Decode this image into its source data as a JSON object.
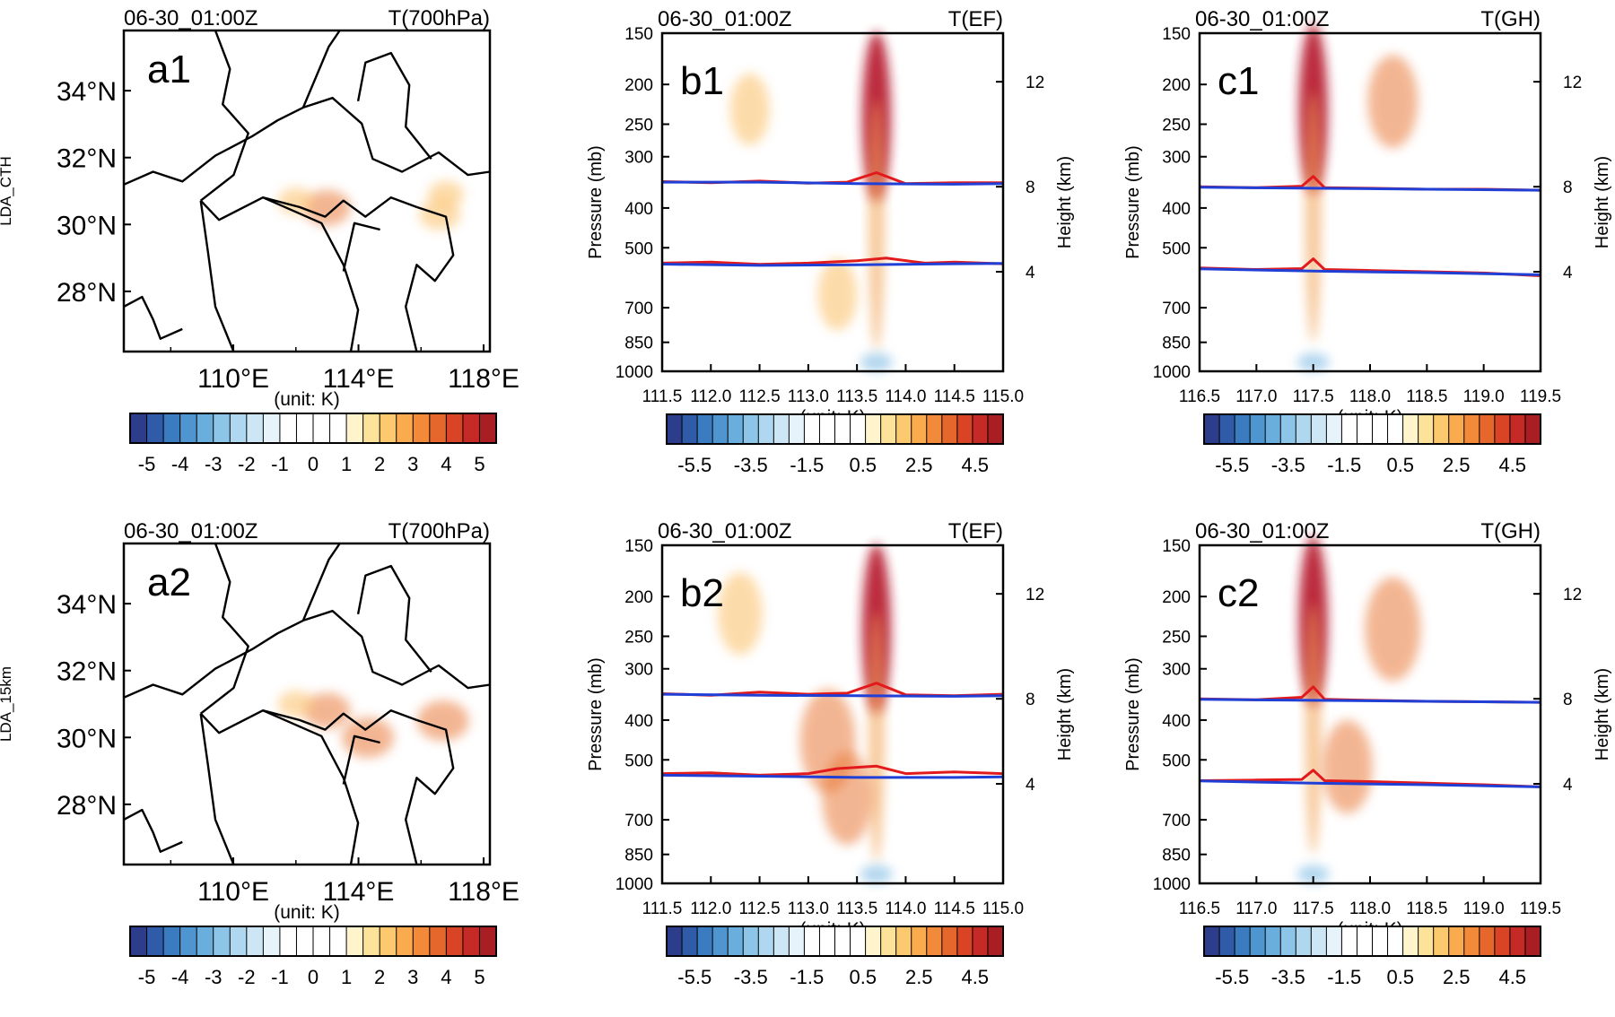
{
  "figure": {
    "row_labels": [
      "LDA_CTH",
      "LDA_15km"
    ],
    "colors": {
      "warm_fill": "#e97a3a",
      "core_fill": "#b5182a",
      "cool_fill": "#6fb3e0",
      "red_contour": "#e31a1c",
      "blue_contour": "#1f3fd6"
    },
    "colorbar_palette": [
      "#2c3d8c",
      "#2f5ba8",
      "#3b7cc0",
      "#4f96d0",
      "#6aaedd",
      "#8cc5e8",
      "#afd8f0",
      "#cde6f5",
      "#e6f3fb",
      "#ffffff",
      "#ffffff",
      "#ffffff",
      "#ffffff",
      "#fff4cc",
      "#fde39a",
      "#fcc96e",
      "#f9ab4e",
      "#f28a3a",
      "#e6672c",
      "#d94427",
      "#c62a26",
      "#a81e22"
    ]
  },
  "chart_data": [
    {
      "id": "a1",
      "type": "heatmap",
      "panel_label": "a1",
      "time": "06-30_01:00Z",
      "field": "T(700hPa)",
      "row_label": "LDA_CTH",
      "x_ticks": [
        "110°E",
        "114°E",
        "118°E"
      ],
      "x_range": [
        106.5,
        118.2
      ],
      "y_ticks": [
        "34°N",
        "32°N",
        "30°N",
        "28°N"
      ],
      "y_range": [
        26.2,
        35.8
      ],
      "xlabel": "(unit: K)",
      "anomaly_blobs": [
        {
          "lon": 113.0,
          "lat": 30.5,
          "value": 2.0
        },
        {
          "lon": 112.0,
          "lat": 30.7,
          "value": 1.0
        },
        {
          "lon": 116.6,
          "lat": 30.3,
          "value": 1.5
        },
        {
          "lon": 116.8,
          "lat": 30.9,
          "value": 1.0
        }
      ],
      "colorbar": {
        "ticks": [
          "-5",
          "-4",
          "-3",
          "-2",
          "-1",
          "0",
          "1",
          "2",
          "3",
          "4",
          "5"
        ],
        "range": [
          -5.5,
          5.5
        ]
      }
    },
    {
      "id": "b1",
      "type": "heatmap",
      "panel_label": "b1",
      "time": "06-30_01:00Z",
      "field": "T(EF)",
      "x_ticks": [
        "111.5",
        "112.0",
        "112.5",
        "113.0",
        "113.5",
        "114.0",
        "114.5",
        "115.0"
      ],
      "x_range": [
        111.5,
        115.0
      ],
      "y_ticks": [
        "150",
        "200",
        "250",
        "300",
        "400",
        "500",
        "700",
        "850",
        "1000"
      ],
      "y_range": [
        150,
        1000
      ],
      "y2_ticks": [
        "12",
        "8",
        "4"
      ],
      "xlabel": "(unit: K)",
      "ylabel": "Pressure (mb)",
      "y2label": "Height (km)",
      "series": [
        {
          "name": "upper red contour",
          "x": [
            111.5,
            112.0,
            112.5,
            113.0,
            113.4,
            113.7,
            114.0,
            114.5,
            115.0
          ],
          "y": [
            345,
            347,
            344,
            348,
            346,
            328,
            349,
            347,
            347
          ]
        },
        {
          "name": "upper blue contour",
          "x": [
            111.5,
            112.5,
            113.5,
            114.5,
            115.0
          ],
          "y": [
            346,
            346,
            349,
            350,
            349
          ]
        },
        {
          "name": "lower red contour",
          "x": [
            111.5,
            112.0,
            112.5,
            113.0,
            113.5,
            113.8,
            114.2,
            114.5,
            115.0
          ],
          "y": [
            545,
            542,
            549,
            545,
            538,
            530,
            545,
            542,
            547
          ]
        },
        {
          "name": "lower blue contour",
          "x": [
            111.5,
            112.5,
            113.5,
            114.5,
            115.0
          ],
          "y": [
            548,
            552,
            550,
            547,
            546
          ]
        }
      ],
      "anomaly_blobs": [
        {
          "x": 113.7,
          "p": 240,
          "value": 5.0
        },
        {
          "x": 112.4,
          "p": 230,
          "value": 1.0
        },
        {
          "x": 113.3,
          "p": 650,
          "value": 1.0
        },
        {
          "x": 113.7,
          "p": 950,
          "value": -1.0
        }
      ],
      "colorbar": {
        "ticks": [
          "-5.5",
          "-3.5",
          "-1.5",
          "0.5",
          "2.5",
          "4.5"
        ],
        "range": [
          -6.5,
          5.5
        ]
      }
    },
    {
      "id": "c1",
      "type": "heatmap",
      "panel_label": "c1",
      "time": "06-30_01:00Z",
      "field": "T(GH)",
      "x_ticks": [
        "116.5",
        "117.0",
        "117.5",
        "118.0",
        "118.5",
        "119.0",
        "119.5"
      ],
      "x_range": [
        116.5,
        119.5
      ],
      "y_ticks": [
        "150",
        "200",
        "250",
        "300",
        "400",
        "500",
        "700",
        "850",
        "1000"
      ],
      "y_range": [
        150,
        1000
      ],
      "y2_ticks": [
        "12",
        "8",
        "4"
      ],
      "xlabel": "(unit: K)",
      "ylabel": "Pressure (mb)",
      "y2label": "Height (km)",
      "series": [
        {
          "name": "upper red contour",
          "x": [
            116.5,
            117.0,
            117.4,
            117.5,
            117.6,
            118.0,
            118.5,
            119.0,
            119.5
          ],
          "y": [
            355,
            357,
            354,
            335,
            357,
            358,
            360,
            360,
            362
          ]
        },
        {
          "name": "upper blue contour",
          "x": [
            116.5,
            117.5,
            118.5,
            119.5
          ],
          "y": [
            356,
            358,
            360,
            362
          ]
        },
        {
          "name": "lower red contour",
          "x": [
            116.5,
            117.0,
            117.4,
            117.5,
            117.6,
            118.0,
            118.5,
            119.0,
            119.5
          ],
          "y": [
            560,
            565,
            562,
            532,
            565,
            568,
            572,
            576,
            585
          ]
        },
        {
          "name": "lower blue contour",
          "x": [
            116.5,
            117.5,
            118.5,
            119.5
          ],
          "y": [
            563,
            570,
            575,
            582
          ]
        }
      ],
      "anomaly_blobs": [
        {
          "x": 117.5,
          "p": 230,
          "value": 5.0
        },
        {
          "x": 118.2,
          "p": 220,
          "value": 2.0
        },
        {
          "x": 117.5,
          "p": 950,
          "value": -1.0
        }
      ],
      "colorbar": {
        "ticks": [
          "-5.5",
          "-3.5",
          "-1.5",
          "0.5",
          "2.5",
          "4.5"
        ],
        "range": [
          -6.5,
          5.5
        ]
      }
    },
    {
      "id": "a2",
      "type": "heatmap",
      "panel_label": "a2",
      "time": "06-30_01:00Z",
      "field": "T(700hPa)",
      "row_label": "LDA_15km",
      "x_ticks": [
        "110°E",
        "114°E",
        "118°E"
      ],
      "x_range": [
        106.5,
        118.2
      ],
      "y_ticks": [
        "34°N",
        "32°N",
        "30°N",
        "28°N"
      ],
      "y_range": [
        26.2,
        35.8
      ],
      "xlabel": "(unit: K)",
      "anomaly_blobs": [
        {
          "lon": 113.0,
          "lat": 30.8,
          "value": 2.0
        },
        {
          "lon": 114.3,
          "lat": 30.0,
          "value": 2.5
        },
        {
          "lon": 116.7,
          "lat": 30.5,
          "value": 2.5
        },
        {
          "lon": 112.0,
          "lat": 31.0,
          "value": 1.0
        }
      ],
      "colorbar": {
        "ticks": [
          "-5",
          "-4",
          "-3",
          "-2",
          "-1",
          "0",
          "1",
          "2",
          "3",
          "4",
          "5"
        ],
        "range": [
          -5.5,
          5.5
        ]
      }
    },
    {
      "id": "b2",
      "type": "heatmap",
      "panel_label": "b2",
      "time": "06-30_01:00Z",
      "field": "T(EF)",
      "x_ticks": [
        "111.5",
        "112.0",
        "112.5",
        "113.0",
        "113.5",
        "114.0",
        "114.5",
        "115.0"
      ],
      "x_range": [
        111.5,
        115.0
      ],
      "y_ticks": [
        "150",
        "200",
        "250",
        "300",
        "400",
        "500",
        "700",
        "850",
        "1000"
      ],
      "y_range": [
        150,
        1000
      ],
      "y2_ticks": [
        "12",
        "8",
        "4"
      ],
      "xlabel": "(unit: K)",
      "ylabel": "Pressure (mb)",
      "y2label": "Height (km)",
      "series": [
        {
          "name": "upper red contour",
          "x": [
            111.5,
            112.0,
            112.5,
            113.0,
            113.4,
            113.7,
            114.0,
            114.5,
            115.0
          ],
          "y": [
            345,
            348,
            342,
            346,
            344,
            325,
            347,
            349,
            346
          ]
        },
        {
          "name": "upper blue contour",
          "x": [
            111.5,
            112.5,
            113.5,
            114.5,
            115.0
          ],
          "y": [
            346,
            348,
            349,
            350,
            349
          ]
        },
        {
          "name": "lower red contour",
          "x": [
            111.5,
            112.0,
            112.5,
            113.0,
            113.3,
            113.7,
            114.0,
            114.5,
            115.0
          ],
          "y": [
            540,
            538,
            545,
            540,
            525,
            518,
            540,
            535,
            540
          ]
        },
        {
          "name": "lower blue contour",
          "x": [
            111.5,
            112.5,
            113.5,
            114.5,
            115.0
          ],
          "y": [
            545,
            548,
            552,
            552,
            550
          ]
        }
      ],
      "anomaly_blobs": [
        {
          "x": 113.7,
          "p": 240,
          "value": 5.0
        },
        {
          "x": 113.2,
          "p": 450,
          "value": 2.5
        },
        {
          "x": 113.4,
          "p": 620,
          "value": 2.0
        },
        {
          "x": 112.3,
          "p": 220,
          "value": 1.5
        },
        {
          "x": 113.7,
          "p": 950,
          "value": -1.0
        }
      ],
      "colorbar": {
        "ticks": [
          "-5.5",
          "-3.5",
          "-1.5",
          "0.5",
          "2.5",
          "4.5"
        ],
        "range": [
          -6.5,
          5.5
        ]
      }
    },
    {
      "id": "c2",
      "type": "heatmap",
      "panel_label": "c2",
      "time": "06-30_01:00Z",
      "field": "T(GH)",
      "x_ticks": [
        "116.5",
        "117.0",
        "117.5",
        "118.0",
        "118.5",
        "119.0",
        "119.5"
      ],
      "x_range": [
        116.5,
        119.5
      ],
      "y_ticks": [
        "150",
        "200",
        "250",
        "300",
        "400",
        "500",
        "700",
        "850",
        "1000"
      ],
      "y_range": [
        150,
        1000
      ],
      "y2_ticks": [
        "12",
        "8",
        "4"
      ],
      "xlabel": "(unit: K)",
      "ylabel": "Pressure (mb)",
      "y2label": "Height (km)",
      "series": [
        {
          "name": "upper red contour",
          "x": [
            116.5,
            117.0,
            117.4,
            117.5,
            117.6,
            118.0,
            118.5,
            119.0,
            119.5
          ],
          "y": [
            355,
            357,
            352,
            332,
            356,
            358,
            360,
            361,
            362
          ]
        },
        {
          "name": "upper blue contour",
          "x": [
            116.5,
            117.5,
            118.5,
            119.5
          ],
          "y": [
            356,
            358,
            360,
            362
          ]
        },
        {
          "name": "lower red contour",
          "x": [
            116.5,
            117.0,
            117.4,
            117.5,
            117.6,
            118.0,
            118.5,
            119.0,
            119.5
          ],
          "y": [
            562,
            560,
            558,
            530,
            562,
            565,
            570,
            575,
            582
          ]
        },
        {
          "name": "lower blue contour",
          "x": [
            116.5,
            117.5,
            118.5,
            119.5
          ],
          "y": [
            563,
            570,
            575,
            582
          ]
        }
      ],
      "anomaly_blobs": [
        {
          "x": 117.5,
          "p": 230,
          "value": 5.0
        },
        {
          "x": 118.2,
          "p": 240,
          "value": 2.5
        },
        {
          "x": 117.8,
          "p": 520,
          "value": 2.0
        },
        {
          "x": 117.5,
          "p": 950,
          "value": -1.0
        }
      ],
      "colorbar": {
        "ticks": [
          "-5.5",
          "-3.5",
          "-1.5",
          "0.5",
          "2.5",
          "4.5"
        ],
        "range": [
          -6.5,
          5.5
        ]
      }
    }
  ]
}
